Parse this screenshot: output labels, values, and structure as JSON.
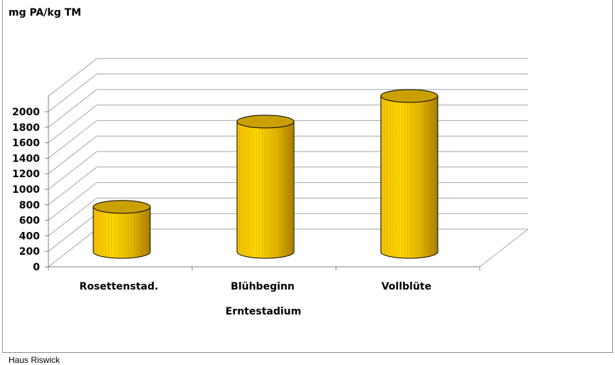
{
  "chart_data": {
    "type": "bar",
    "style": "3d-cylinder",
    "title": "",
    "ylabel": "mg PA/kg TM",
    "xlabel": "Erntestadium",
    "categories": [
      "Rosettenstad.",
      "Blühbeginn",
      "Vollblüte"
    ],
    "values": [
      580,
      1680,
      2010
    ],
    "ylim": [
      0,
      2000
    ],
    "ytick_labels": [
      "0",
      "200",
      "400",
      "600",
      "800",
      "1000",
      "1200",
      "1400",
      "1600",
      "1800",
      "2000"
    ],
    "grid": true,
    "legend": "none",
    "colors": {
      "bar": "#ffd700",
      "bar_top": "#c9a000",
      "bar_shade": "#b58a00",
      "grid": "#a6a6a6"
    }
  },
  "footer": {
    "source": "Haus Riswick"
  }
}
